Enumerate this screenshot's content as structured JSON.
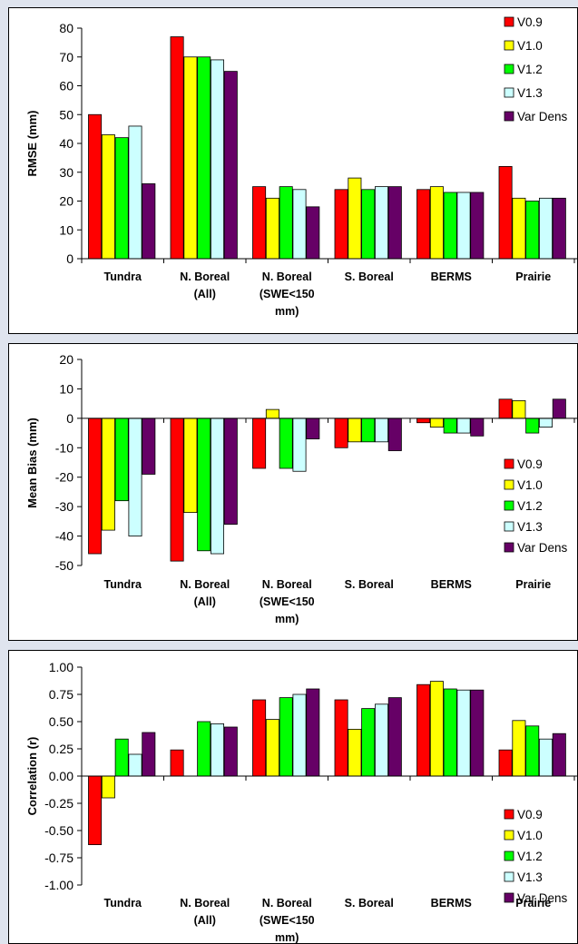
{
  "charts": [
    {
      "type": "bar",
      "ylabel": "RMSE (mm)",
      "ylim": [
        0,
        80
      ],
      "yticks": [
        0,
        10,
        20,
        30,
        40,
        50,
        60,
        70,
        80
      ],
      "categories": [
        [
          "Tundra"
        ],
        [
          "N. Boreal",
          "(All)"
        ],
        [
          "N. Boreal",
          "(SWE<150",
          "mm)"
        ],
        [
          "S. Boreal"
        ],
        [
          "BERMS"
        ],
        [
          "Prairie"
        ]
      ],
      "series": [
        {
          "name": "V0.9",
          "color": "#ff0000",
          "values": [
            50,
            77,
            25,
            24,
            24,
            32
          ]
        },
        {
          "name": "V1.0",
          "color": "#ffff00",
          "values": [
            43,
            70,
            21,
            28,
            25,
            21
          ]
        },
        {
          "name": "V1.2",
          "color": "#00ff00",
          "values": [
            42,
            70,
            25,
            24,
            23,
            20
          ]
        },
        {
          "name": "V1.3",
          "color": "#ccffff",
          "values": [
            46,
            69,
            24,
            25,
            23,
            21
          ]
        },
        {
          "name": "Var Dens",
          "color": "#660066",
          "values": [
            26,
            65,
            18,
            25,
            23,
            21
          ]
        }
      ]
    },
    {
      "type": "bar",
      "ylabel": "Mean Bias (mm)",
      "ylim": [
        -50,
        20
      ],
      "yticks": [
        -50,
        -40,
        -30,
        -20,
        -10,
        0,
        10,
        20
      ],
      "categories": [
        [
          "Tundra"
        ],
        [
          "N. Boreal",
          "(All)"
        ],
        [
          "N. Boreal",
          "(SWE<150",
          "mm)"
        ],
        [
          "S. Boreal"
        ],
        [
          "BERMS"
        ],
        [
          "Prairie"
        ]
      ],
      "series": [
        {
          "name": "V0.9",
          "color": "#ff0000",
          "values": [
            -46,
            -48.5,
            -17,
            -10,
            -1.5,
            6.5
          ]
        },
        {
          "name": "V1.0",
          "color": "#ffff00",
          "values": [
            -38,
            -32,
            3,
            -8,
            -3,
            6
          ]
        },
        {
          "name": "V1.2",
          "color": "#00ff00",
          "values": [
            -28,
            -45,
            -17,
            -8,
            -5,
            -5
          ]
        },
        {
          "name": "V1.3",
          "color": "#ccffff",
          "values": [
            -40,
            -46,
            -18,
            -8,
            -5,
            -3
          ]
        },
        {
          "name": "Var Dens",
          "color": "#660066",
          "values": [
            -19,
            -36,
            -7,
            -11,
            -6,
            6.5
          ]
        }
      ]
    },
    {
      "type": "bar",
      "ylabel": "Correlation (r)",
      "ylim": [
        -1,
        1
      ],
      "yticks": [
        "-1.00",
        "-0.75",
        "-0.50",
        "-0.25",
        "0.00",
        "0.25",
        "0.50",
        "0.75",
        "1.00"
      ],
      "categories": [
        [
          "Tundra"
        ],
        [
          "N. Boreal",
          "(All)"
        ],
        [
          "N. Boreal",
          "(SWE<150",
          "mm)"
        ],
        [
          "S. Boreal"
        ],
        [
          "BERMS"
        ],
        [
          "Prairie"
        ]
      ],
      "series": [
        {
          "name": "V0.9",
          "color": "#ff0000",
          "values": [
            -0.63,
            0.24,
            0.7,
            0.7,
            0.84,
            0.24
          ]
        },
        {
          "name": "V1.0",
          "color": "#ffff00",
          "values": [
            -0.2,
            null,
            0.52,
            0.43,
            0.87,
            0.51
          ]
        },
        {
          "name": "V1.2",
          "color": "#00ff00",
          "values": [
            0.34,
            0.5,
            0.72,
            0.62,
            0.8,
            0.46
          ]
        },
        {
          "name": "V1.3",
          "color": "#ccffff",
          "values": [
            0.2,
            0.48,
            0.75,
            0.66,
            0.79,
            0.34
          ]
        },
        {
          "name": "Var Dens",
          "color": "#660066",
          "values": [
            0.4,
            0.45,
            0.8,
            0.72,
            0.79,
            0.39
          ]
        }
      ]
    }
  ]
}
